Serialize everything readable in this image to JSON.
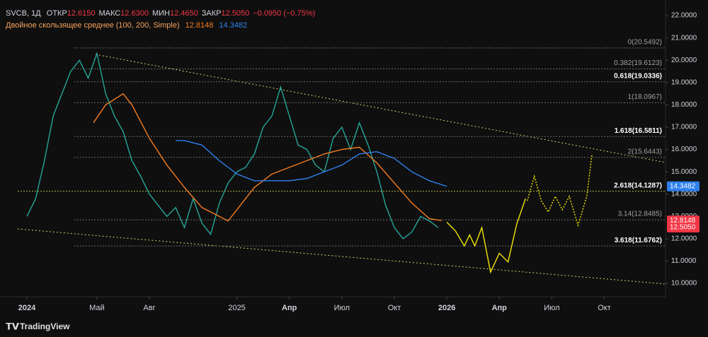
{
  "chart_data": {
    "type": "line",
    "symbol": "SVCB, 1Д",
    "quote": [
      {
        "label": "ОТКР",
        "value": "12.6150"
      },
      {
        "label": "МАКС",
        "value": "12.6300"
      },
      {
        "label": "МИН",
        "value": "12.4650"
      },
      {
        "label": "ЗАКР",
        "value": "12.5050"
      },
      {
        "label": "",
        "value": "−0.0950 (−0.75%)"
      }
    ],
    "indicator": "Двойное скользящее среднее (100, 200, Simple)",
    "brand": "TradingView",
    "xlim": [
      -1.54,
      36.5
    ],
    "xticks": [
      {
        "value": 0,
        "label": "2024"
      },
      {
        "value": 4,
        "label": "Май"
      },
      {
        "value": 7,
        "label": "Авг"
      },
      {
        "value": 12,
        "label": "2025"
      },
      {
        "value": 15,
        "label": "Апр"
      },
      {
        "value": 18,
        "label": "Июл"
      },
      {
        "value": 21,
        "label": "Окт"
      },
      {
        "value": 24,
        "label": "2026"
      },
      {
        "value": 27,
        "label": "Апр"
      },
      {
        "value": 30,
        "label": "Июл"
      },
      {
        "value": 33,
        "label": "Окт"
      }
    ],
    "ylim": [
      9.4,
      22.7
    ],
    "yticks": [
      {
        "value": 10,
        "label": "10.0000"
      },
      {
        "value": 11,
        "label": "11.0000"
      },
      {
        "value": 12,
        "label": "12.0000"
      },
      {
        "value": 13,
        "label": "13.0000"
      },
      {
        "value": 14,
        "label": "14.0000"
      },
      {
        "value": 15,
        "label": "15.0000"
      },
      {
        "value": 16,
        "label": "16.0000"
      },
      {
        "value": 17,
        "label": "17.0000"
      },
      {
        "value": 18,
        "label": "18.0000"
      },
      {
        "value": 19,
        "label": "19.0000"
      },
      {
        "value": 20,
        "label": "20.0000"
      },
      {
        "value": 21,
        "label": "21.0000"
      },
      {
        "value": 22,
        "label": "22.0000"
      }
    ],
    "series": [
      {
        "color": "#26a69a",
        "x": [
          0,
          0.5,
          1,
          1.5,
          2,
          2.5,
          3,
          3.5,
          4,
          4.5,
          5,
          5.5,
          6,
          6.5,
          7,
          7.5,
          8,
          8.5,
          9,
          9.5,
          10,
          10.5,
          11,
          11.5,
          12,
          12.5,
          13,
          13.5,
          14,
          14.5,
          15,
          15.5,
          16,
          16.5,
          17,
          17.5,
          18,
          18.5,
          19,
          19.5,
          20,
          20.5,
          21,
          21.5,
          22,
          22.5,
          23,
          23.5
        ],
        "values": [
          13.0,
          13.8,
          15.5,
          17.5,
          18.5,
          19.5,
          20.0,
          19.2,
          20.3,
          18.5,
          17.5,
          16.8,
          15.5,
          14.8,
          14.0,
          13.5,
          13.0,
          13.4,
          12.5,
          13.8,
          12.7,
          12.2,
          13.6,
          14.5,
          15.0,
          15.2,
          15.8,
          17.0,
          17.5,
          18.8,
          17.5,
          16.2,
          16.0,
          15.3,
          15.0,
          16.5,
          17.0,
          16.0,
          17.2,
          16.2,
          15.0,
          13.5,
          12.5,
          12.0,
          12.3,
          13.0,
          12.8,
          12.5
        ]
      },
      {
        "name": "12.8148",
        "color": "#f57c1f",
        "x": [
          3.8,
          4.5,
          5.5,
          6,
          7,
          8,
          9,
          10,
          11,
          11.5,
          12,
          13,
          14,
          15,
          16,
          17,
          18,
          19,
          20,
          21,
          22,
          23,
          23.7
        ],
        "values": [
          17.2,
          18.0,
          18.5,
          18.0,
          16.5,
          15.3,
          14.3,
          13.4,
          13.0,
          12.8,
          13.3,
          14.3,
          14.9,
          15.2,
          15.5,
          15.8,
          16.0,
          16.1,
          15.4,
          14.5,
          13.6,
          12.9,
          12.8148
        ]
      },
      {
        "name": "14.3482",
        "color": "#2f80ed",
        "x": [
          8.5,
          9,
          10,
          11,
          12,
          13,
          14,
          15,
          16,
          17,
          18,
          19,
          20,
          21,
          22,
          23,
          24
        ],
        "values": [
          16.4,
          16.4,
          16.2,
          15.5,
          14.9,
          14.6,
          14.6,
          14.6,
          14.7,
          15.0,
          15.3,
          15.8,
          15.9,
          15.6,
          15.0,
          14.6,
          14.3482
        ]
      },
      {
        "color": "#f2e600",
        "x": [
          24,
          24.5,
          25,
          25.3,
          25.6,
          26,
          26.5,
          27,
          27.5,
          28,
          28.5
        ],
        "values": [
          12.74,
          12.34,
          11.68,
          12.17,
          11.68,
          12.5,
          10.5,
          11.35,
          10.96,
          12.67,
          13.8
        ]
      },
      {
        "color": "#f2e600",
        "dashed": true,
        "x": [
          28.6,
          29,
          29.4,
          29.8,
          30.2,
          30.6,
          31,
          31.5,
          32,
          32.3
        ],
        "values": [
          13.7,
          14.8,
          13.7,
          13.2,
          13.9,
          13.3,
          13.9,
          12.6,
          13.9,
          15.8
        ]
      }
    ],
    "fib_levels": [
      {
        "label": "0(20.5492)",
        "value": 20.5492,
        "emphasis": false
      },
      {
        "label": "0.382(19.6123)",
        "value": 19.6123,
        "emphasis": false
      },
      {
        "label": "0.618(19.0336)",
        "value": 19.0336,
        "emphasis": true
      },
      {
        "label": "1(18.0967)",
        "value": 18.0967,
        "emphasis": false
      },
      {
        "label": "1.618(16.5811)",
        "value": 16.5811,
        "emphasis": true
      },
      {
        "label": "2(15.6443)",
        "value": 15.6443,
        "emphasis": false
      },
      {
        "label": "2.618(14.1287)",
        "value": 14.1287,
        "emphasis": true
      },
      {
        "label": "3.14(12.8485)",
        "value": 12.8485,
        "emphasis": false
      },
      {
        "label": "3.618(11.6762)",
        "value": 11.6762,
        "emphasis": true
      }
    ],
    "price_badges": [
      {
        "label": "14.3482",
        "value": 14.3482,
        "color": "#2f80ed"
      },
      {
        "label": "12.8148",
        "value": 12.8148,
        "color": "#f23645"
      },
      {
        "label": "12.5050",
        "value": 12.505,
        "color": "#f23645"
      }
    ]
  }
}
